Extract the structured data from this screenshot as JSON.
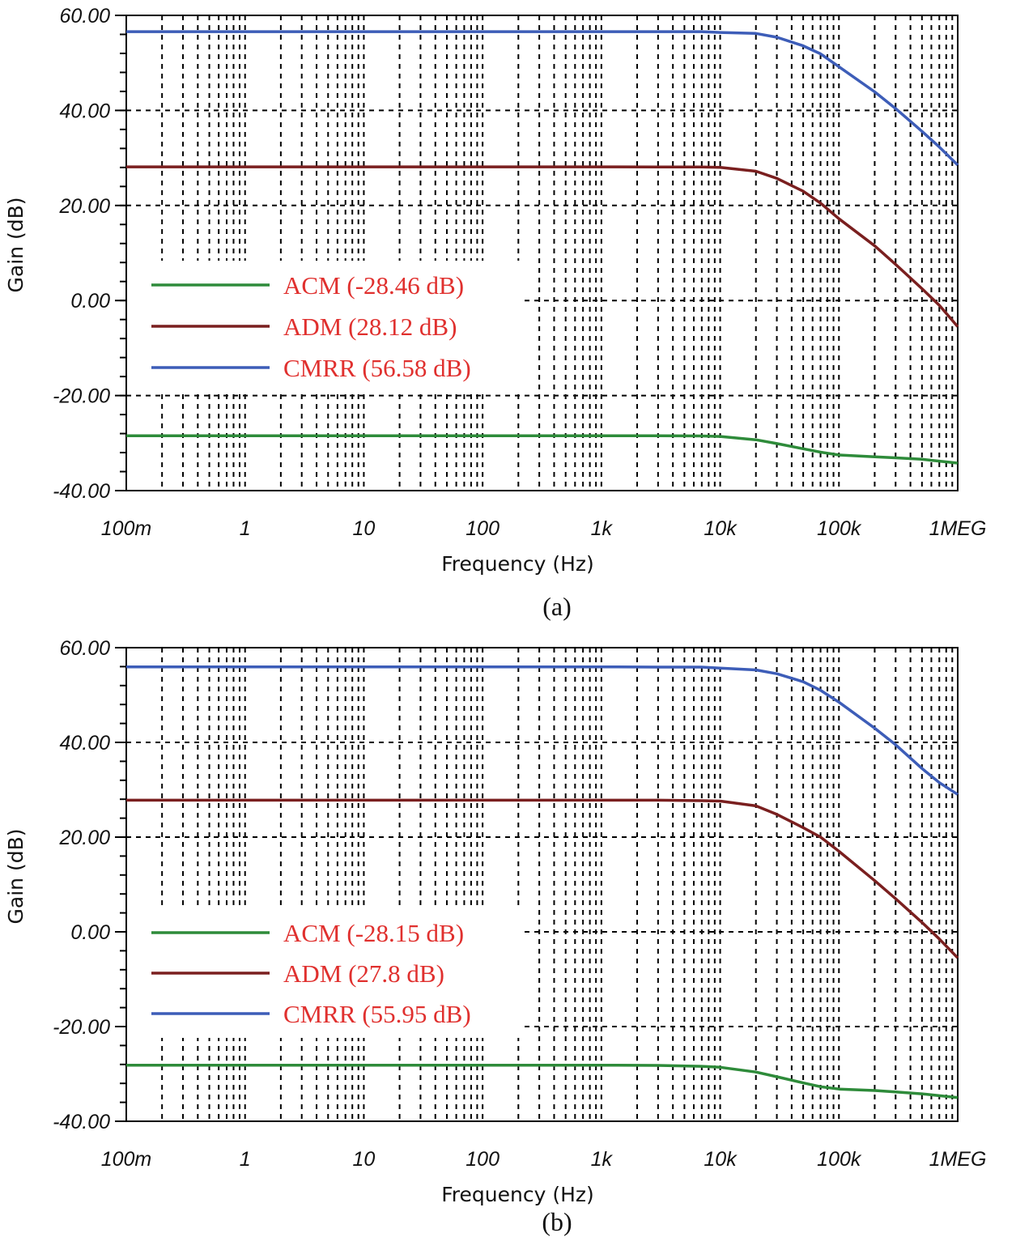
{
  "chart_data": [
    {
      "type": "line",
      "panel_label": "(a)",
      "xlabel": "Frequency (Hz)",
      "ylabel": "Gain (dB)",
      "xscale": "log",
      "xlim": [
        0.1,
        1000000
      ],
      "ylim": [
        -40,
        60
      ],
      "x_ticks": [
        0.1,
        1,
        10,
        100,
        1000,
        10000,
        100000,
        1000000
      ],
      "x_tick_labels": [
        "100m",
        "1",
        "10",
        "100",
        "1k",
        "10k",
        "100k",
        "1MEG"
      ],
      "y_ticks": [
        60,
        40,
        20,
        0,
        -20,
        -40
      ],
      "y_tick_labels": [
        "60.00",
        "40.00",
        "20.00",
        "0.00",
        "-20.00",
        "-40.00"
      ],
      "grid": true,
      "legend_position": "left-middle",
      "x": [
        0.1,
        1,
        10,
        100,
        1000,
        3000,
        7000,
        10000,
        20000,
        30000,
        50000,
        70000,
        100000,
        200000,
        300000,
        500000,
        700000,
        1000000
      ],
      "series": [
        {
          "name": "ACM",
          "legend": "ACM (-28.46 dB)",
          "color": "#2e8b3a",
          "values": [
            -28.46,
            -28.46,
            -28.46,
            -28.46,
            -28.46,
            -28.46,
            -28.5,
            -28.6,
            -29.3,
            -30.1,
            -31.2,
            -31.9,
            -32.5,
            -32.9,
            -33.1,
            -33.4,
            -33.8,
            -34.2
          ]
        },
        {
          "name": "ADM",
          "legend": "ADM (28.12 dB)",
          "color": "#7a1f1f",
          "values": [
            28.12,
            28.12,
            28.12,
            28.12,
            28.12,
            28.1,
            28.1,
            28.0,
            27.2,
            25.7,
            23.0,
            20.5,
            17.2,
            11.5,
            7.6,
            2.5,
            -1.0,
            -5.5
          ]
        },
        {
          "name": "CMRR",
          "legend": "CMRR (56.58 dB)",
          "color": "#3d5db8",
          "values": [
            56.58,
            56.58,
            56.58,
            56.58,
            56.58,
            56.58,
            56.58,
            56.4,
            56.2,
            55.4,
            53.6,
            51.9,
            49.2,
            43.9,
            40.4,
            35.6,
            32.3,
            28.5
          ]
        }
      ]
    },
    {
      "type": "line",
      "panel_label": "(b)",
      "xlabel": "Frequency (Hz)",
      "ylabel": "Gain (dB)",
      "xscale": "log",
      "xlim": [
        0.1,
        1000000
      ],
      "ylim": [
        -40,
        60
      ],
      "x_ticks": [
        0.1,
        1,
        10,
        100,
        1000,
        10000,
        100000,
        1000000
      ],
      "x_tick_labels": [
        "100m",
        "1",
        "10",
        "100",
        "1k",
        "10k",
        "100k",
        "1MEG"
      ],
      "y_ticks": [
        60,
        40,
        20,
        0,
        -20,
        -40
      ],
      "y_tick_labels": [
        "60.00",
        "40.00",
        "20.00",
        "0.00",
        "-20.00",
        "-40.00"
      ],
      "grid": true,
      "legend_position": "left-middle",
      "x": [
        0.1,
        1,
        10,
        100,
        1000,
        3000,
        7000,
        10000,
        20000,
        30000,
        50000,
        70000,
        100000,
        200000,
        300000,
        500000,
        700000,
        1000000
      ],
      "series": [
        {
          "name": "ACM",
          "legend": "ACM (-28.15 dB)",
          "color": "#2e8b3a",
          "values": [
            -28.15,
            -28.15,
            -28.15,
            -28.15,
            -28.15,
            -28.2,
            -28.4,
            -28.6,
            -29.6,
            -30.6,
            -31.9,
            -32.7,
            -33.2,
            -33.5,
            -33.8,
            -34.2,
            -34.6,
            -35.0
          ]
        },
        {
          "name": "ADM",
          "legend": "ADM (27.8 dB)",
          "color": "#7a1f1f",
          "values": [
            27.8,
            27.8,
            27.8,
            27.8,
            27.8,
            27.8,
            27.7,
            27.6,
            26.6,
            24.8,
            22.0,
            20.0,
            17.0,
            10.8,
            7.0,
            2.0,
            -1.5,
            -5.5
          ]
        },
        {
          "name": "CMRR",
          "legend": "CMRR (55.95 dB)",
          "color": "#3d5db8",
          "values": [
            55.95,
            55.95,
            55.95,
            55.95,
            55.95,
            55.9,
            55.9,
            55.7,
            55.3,
            54.5,
            52.8,
            51.0,
            48.5,
            43.0,
            39.5,
            34.5,
            31.5,
            29.0
          ]
        }
      ]
    }
  ]
}
